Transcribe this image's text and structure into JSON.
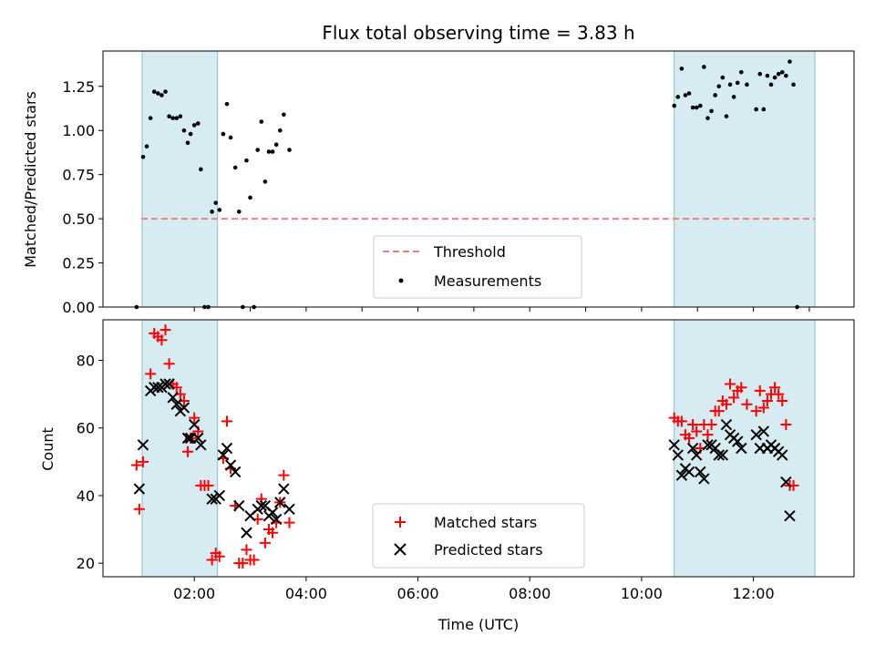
{
  "chart_data": [
    {
      "type": "scatter",
      "title": "Flux total observing time = 3.83 h",
      "xlabel": "",
      "ylabel": "Matched/Predicted stars",
      "xlim": [
        "00:22",
        "13:48"
      ],
      "ylim": [
        0,
        1.45
      ],
      "yticks": [
        "0.00",
        "0.25",
        "0.50",
        "0.75",
        "1.00",
        "1.25"
      ],
      "grid": false,
      "shaded_intervals": [
        [
          "01:04",
          "02:25"
        ],
        [
          "10:35",
          "13:06"
        ]
      ],
      "threshold": {
        "name": "Threshold",
        "value": 0.5,
        "color": "#f08080"
      },
      "legend_position": "bottom-center",
      "series": [
        {
          "name": "Measurements",
          "color": "#000000",
          "marker": "dot",
          "points": [
            [
              "00:58",
              0.0
            ],
            [
              "01:05",
              0.85
            ],
            [
              "01:09",
              0.91
            ],
            [
              "01:13",
              1.07
            ],
            [
              "01:17",
              1.22
            ],
            [
              "01:21",
              1.21
            ],
            [
              "01:25",
              1.2
            ],
            [
              "01:29",
              1.22
            ],
            [
              "01:33",
              1.08
            ],
            [
              "01:37",
              1.07
            ],
            [
              "01:41",
              1.07
            ],
            [
              "01:45",
              1.08
            ],
            [
              "01:49",
              1.0
            ],
            [
              "01:53",
              0.93
            ],
            [
              "01:56",
              0.98
            ],
            [
              "02:00",
              1.03
            ],
            [
              "02:04",
              1.04
            ],
            [
              "02:07",
              0.78
            ],
            [
              "02:11",
              0.0
            ],
            [
              "02:15",
              0.0
            ],
            [
              "02:19",
              0.54
            ],
            [
              "02:23",
              0.59
            ],
            [
              "02:27",
              0.55
            ],
            [
              "02:31",
              0.98
            ],
            [
              "02:35",
              1.15
            ],
            [
              "02:39",
              0.96
            ],
            [
              "02:44",
              0.79
            ],
            [
              "02:48",
              0.54
            ],
            [
              "02:52",
              0.0
            ],
            [
              "02:56",
              0.83
            ],
            [
              "03:00",
              0.62
            ],
            [
              "03:04",
              0.0
            ],
            [
              "03:08",
              0.89
            ],
            [
              "03:12",
              1.05
            ],
            [
              "03:16",
              0.71
            ],
            [
              "03:20",
              0.88
            ],
            [
              "03:24",
              0.88
            ],
            [
              "03:28",
              0.92
            ],
            [
              "03:32",
              1.0
            ],
            [
              "03:36",
              1.09
            ],
            [
              "03:42",
              0.89
            ],
            [
              "10:35",
              1.14
            ],
            [
              "10:39",
              1.19
            ],
            [
              "10:43",
              1.35
            ],
            [
              "10:47",
              1.2
            ],
            [
              "10:51",
              1.21
            ],
            [
              "10:55",
              1.13
            ],
            [
              "10:59",
              1.13
            ],
            [
              "11:03",
              1.14
            ],
            [
              "11:07",
              1.36
            ],
            [
              "11:11",
              1.07
            ],
            [
              "11:15",
              1.11
            ],
            [
              "11:19",
              1.2
            ],
            [
              "11:23",
              1.25
            ],
            [
              "11:27",
              1.3
            ],
            [
              "11:31",
              1.08
            ],
            [
              "11:35",
              1.26
            ],
            [
              "11:39",
              1.19
            ],
            [
              "11:43",
              1.27
            ],
            [
              "11:47",
              1.33
            ],
            [
              "11:53",
              1.26
            ],
            [
              "12:03",
              1.12
            ],
            [
              "12:07",
              1.32
            ],
            [
              "12:11",
              1.12
            ],
            [
              "12:15",
              1.31
            ],
            [
              "12:19",
              1.26
            ],
            [
              "12:23",
              1.3
            ],
            [
              "12:27",
              1.32
            ],
            [
              "12:31",
              1.33
            ],
            [
              "12:35",
              1.31
            ],
            [
              "12:39",
              1.39
            ],
            [
              "12:43",
              1.26
            ],
            [
              "12:47",
              0.0
            ]
          ]
        }
      ]
    },
    {
      "type": "scatter",
      "title": "",
      "xlabel": "Time (UTC)",
      "ylabel": "Count",
      "xlim": [
        "00:22",
        "13:48"
      ],
      "ylim": [
        16,
        92
      ],
      "xticks": [
        "02:00",
        "04:00",
        "06:00",
        "08:00",
        "10:00",
        "12:00"
      ],
      "yticks": [
        "20",
        "40",
        "60",
        "80"
      ],
      "grid": false,
      "shaded_intervals": [
        [
          "01:04",
          "02:25"
        ],
        [
          "10:35",
          "13:06"
        ]
      ],
      "legend_position": "bottom-center",
      "series": [
        {
          "name": "Matched stars",
          "color": "#ff0000",
          "marker": "plus",
          "points": [
            [
              "00:58",
              49
            ],
            [
              "01:01",
              36
            ],
            [
              "01:05",
              50
            ],
            [
              "01:13",
              76
            ],
            [
              "01:17",
              88
            ],
            [
              "01:21",
              87
            ],
            [
              "01:25",
              86
            ],
            [
              "01:29",
              89
            ],
            [
              "01:33",
              79
            ],
            [
              "01:37",
              73
            ],
            [
              "01:41",
              72
            ],
            [
              "01:45",
              70
            ],
            [
              "01:49",
              68
            ],
            [
              "01:53",
              53
            ],
            [
              "01:56",
              57
            ],
            [
              "02:00",
              63
            ],
            [
              "02:04",
              59
            ],
            [
              "02:07",
              43
            ],
            [
              "02:11",
              43
            ],
            [
              "02:15",
              43
            ],
            [
              "02:19",
              21
            ],
            [
              "02:23",
              23
            ],
            [
              "02:27",
              22
            ],
            [
              "02:31",
              51
            ],
            [
              "02:35",
              62
            ],
            [
              "02:39",
              48
            ],
            [
              "02:44",
              37
            ],
            [
              "02:48",
              20
            ],
            [
              "02:52",
              20
            ],
            [
              "02:56",
              24
            ],
            [
              "03:00",
              21
            ],
            [
              "03:04",
              21
            ],
            [
              "03:08",
              33
            ],
            [
              "03:12",
              39
            ],
            [
              "03:16",
              26
            ],
            [
              "03:20",
              30
            ],
            [
              "03:24",
              29
            ],
            [
              "03:28",
              32
            ],
            [
              "03:32",
              38
            ],
            [
              "03:36",
              46
            ],
            [
              "03:42",
              32
            ],
            [
              "10:35",
              63
            ],
            [
              "10:39",
              62
            ],
            [
              "10:43",
              62
            ],
            [
              "10:47",
              58
            ],
            [
              "10:51",
              57
            ],
            [
              "10:55",
              61
            ],
            [
              "10:59",
              59
            ],
            [
              "11:03",
              54
            ],
            [
              "11:07",
              61
            ],
            [
              "11:11",
              58
            ],
            [
              "11:15",
              61
            ],
            [
              "11:19",
              65
            ],
            [
              "11:23",
              65
            ],
            [
              "11:27",
              68
            ],
            [
              "11:31",
              67
            ],
            [
              "11:35",
              73
            ],
            [
              "11:39",
              69
            ],
            [
              "11:43",
              71
            ],
            [
              "11:47",
              72
            ],
            [
              "11:53",
              67
            ],
            [
              "12:03",
              65
            ],
            [
              "12:07",
              71
            ],
            [
              "12:11",
              66
            ],
            [
              "12:15",
              68
            ],
            [
              "12:19",
              70
            ],
            [
              "12:23",
              72
            ],
            [
              "12:27",
              70
            ],
            [
              "12:31",
              68
            ],
            [
              "12:35",
              61
            ],
            [
              "12:39",
              43
            ],
            [
              "12:43",
              43
            ]
          ]
        },
        {
          "name": "Predicted stars",
          "color": "#000000",
          "marker": "x",
          "points": [
            [
              "01:01",
              42
            ],
            [
              "01:05",
              55
            ],
            [
              "01:13",
              71
            ],
            [
              "01:17",
              72
            ],
            [
              "01:21",
              72
            ],
            [
              "01:25",
              72
            ],
            [
              "01:29",
              73
            ],
            [
              "01:33",
              73
            ],
            [
              "01:37",
              69
            ],
            [
              "01:41",
              67
            ],
            [
              "01:45",
              65
            ],
            [
              "01:49",
              66
            ],
            [
              "01:53",
              57
            ],
            [
              "01:56",
              57
            ],
            [
              "02:00",
              61
            ],
            [
              "02:04",
              57
            ],
            [
              "02:07",
              55
            ],
            [
              "02:19",
              39
            ],
            [
              "02:23",
              39
            ],
            [
              "02:27",
              40
            ],
            [
              "02:31",
              52
            ],
            [
              "02:35",
              54
            ],
            [
              "02:39",
              49
            ],
            [
              "02:44",
              47
            ],
            [
              "02:48",
              37
            ],
            [
              "02:56",
              29
            ],
            [
              "03:00",
              34
            ],
            [
              "03:08",
              36
            ],
            [
              "03:12",
              37
            ],
            [
              "03:16",
              37
            ],
            [
              "03:20",
              34
            ],
            [
              "03:24",
              35
            ],
            [
              "03:28",
              33
            ],
            [
              "03:32",
              38
            ],
            [
              "03:36",
              42
            ],
            [
              "03:42",
              36
            ],
            [
              "10:35",
              55
            ],
            [
              "10:39",
              52
            ],
            [
              "10:43",
              46
            ],
            [
              "10:47",
              48
            ],
            [
              "10:51",
              47
            ],
            [
              "10:55",
              54
            ],
            [
              "10:59",
              52
            ],
            [
              "11:03",
              47
            ],
            [
              "11:07",
              45
            ],
            [
              "11:11",
              55
            ],
            [
              "11:15",
              55
            ],
            [
              "11:19",
              54
            ],
            [
              "11:23",
              52
            ],
            [
              "11:27",
              52
            ],
            [
              "11:31",
              61
            ],
            [
              "11:35",
              58
            ],
            [
              "11:39",
              57
            ],
            [
              "11:43",
              56
            ],
            [
              "11:47",
              54
            ],
            [
              "12:03",
              58
            ],
            [
              "12:07",
              54
            ],
            [
              "12:11",
              59
            ],
            [
              "12:15",
              54
            ],
            [
              "12:19",
              55
            ],
            [
              "12:23",
              54
            ],
            [
              "12:27",
              53
            ],
            [
              "12:31",
              52
            ],
            [
              "12:35",
              44
            ],
            [
              "12:39",
              34
            ]
          ]
        }
      ]
    }
  ]
}
